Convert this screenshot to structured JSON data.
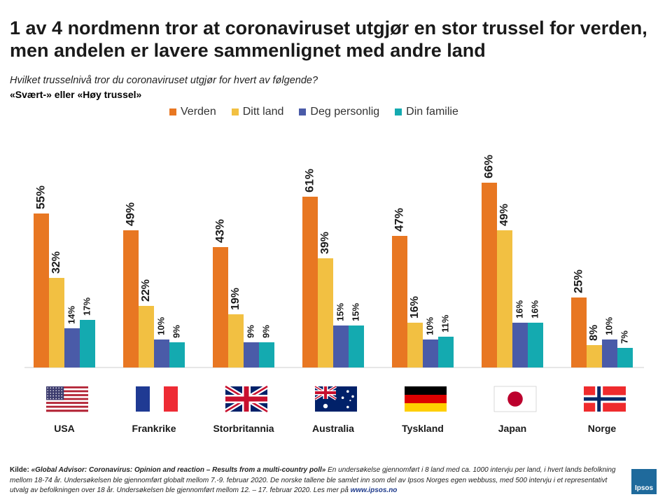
{
  "title": "1 av 4 nordmenn tror at coronaviruset utgjør en stor trussel for verden, men andelen er lavere sammenlignet med andre land",
  "question": "Hvilket trusselnivå tror du coronaviruset utgjør for hvert av følgende?",
  "subquestion": "«Svært-» eller «Høy trussel»",
  "source": {
    "lead": "Kilde: ",
    "title": "«Global Advisor: Coronavirus: Opinion and reaction – Results from a multi-country poll»",
    "body": " En undersøkelse gjennomført i 8 land med ca. 1000 intervju per land, i hvert lands befolkning mellom 18-74 år. Undersøkelsen ble gjennomført globalt mellom 7.-9. februar 2020. De norske tallene ble samlet inn som del av Ipsos Norges egen webbuss, med 500 intervju i et representativt utvalg av befolkningen over 18 år. Undersøkelsen ble gjennomført mellom 12. – 17. februar 2020. Les mer på ",
    "link": "www.ipsos.no"
  },
  "logo_text": "Ipsos",
  "colors": {
    "Verden": "#e87722",
    "Ditt land": "#f2c042",
    "Deg personlig": "#4a5ba8",
    "Din familie": "#14aab0"
  },
  "chart_data": {
    "type": "bar",
    "categories": [
      "USA",
      "Frankrike",
      "Storbritannia",
      "Australia",
      "Tyskland",
      "Japan",
      "Norge"
    ],
    "flags": [
      "us-flag",
      "fr-flag",
      "gb-flag",
      "au-flag",
      "de-flag",
      "jp-flag",
      "no-flag"
    ],
    "series": [
      {
        "name": "Verden",
        "values": [
          55,
          49,
          43,
          61,
          47,
          66,
          25
        ]
      },
      {
        "name": "Ditt land",
        "values": [
          32,
          22,
          19,
          39,
          16,
          49,
          8
        ]
      },
      {
        "name": "Deg personlig",
        "values": [
          14,
          10,
          9,
          15,
          10,
          16,
          10
        ]
      },
      {
        "name": "Din familie",
        "values": [
          17,
          9,
          9,
          15,
          11,
          16,
          7
        ]
      }
    ],
    "value_suffix": "%",
    "legend_position": "top",
    "grid": false
  }
}
